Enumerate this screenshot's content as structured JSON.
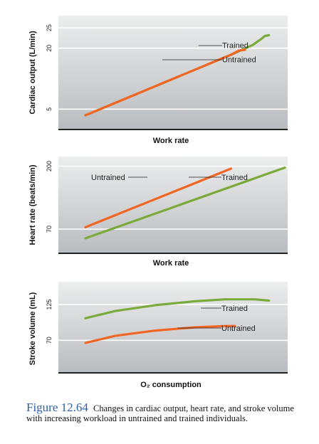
{
  "caption": {
    "label": "Figure 12.64",
    "text": "Changes in cardiac output, heart rate, and stroke volume with increasing workload in untrained and trained individuals."
  },
  "colors": {
    "trained": "#7aaa3a",
    "untrained": "#f26522"
  },
  "chart_data": [
    {
      "type": "line",
      "ylabel": "Cardiac output (L/min)",
      "xlabel": "Work rate",
      "yticks": [
        5,
        20,
        25
      ],
      "ylim": [
        0,
        28
      ],
      "xlim": [
        0,
        100
      ],
      "grid": true,
      "series": [
        {
          "name": "Trained",
          "x": [
            0,
            25,
            50,
            75,
            84,
            88,
            90,
            92
          ],
          "y": [
            3.5,
            8.6,
            13.7,
            18.8,
            20.8,
            22.2,
            23.0,
            23.2
          ]
        },
        {
          "name": "Untrained",
          "x": [
            0,
            25,
            50,
            73,
            77,
            80
          ],
          "y": [
            3.5,
            8.6,
            13.7,
            18.4,
            19.4,
            19.6
          ]
        }
      ]
    },
    {
      "type": "line",
      "ylabel": "Heart rate (beats/min)",
      "xlabel": "Work rate",
      "yticks": [
        70,
        200
      ],
      "ylim": [
        20,
        220
      ],
      "xlim": [
        0,
        100
      ],
      "grid": true,
      "series": [
        {
          "name": "Untrained",
          "x": [
            0,
            73
          ],
          "y": [
            74,
            195
          ]
        },
        {
          "name": "Trained",
          "x": [
            0,
            100
          ],
          "y": [
            51,
            197
          ]
        }
      ]
    },
    {
      "type": "line",
      "ylabel": "Stroke volume (mL)",
      "xlabel": "O₂ consumption",
      "yticks": [
        70,
        125
      ],
      "ylim": [
        20,
        160
      ],
      "xlim": [
        0,
        100
      ],
      "grid": true,
      "series": [
        {
          "name": "Trained",
          "x": [
            0,
            15,
            35,
            55,
            70,
            85,
            92
          ],
          "y": [
            104,
            115,
            124,
            130,
            133,
            133,
            131
          ]
        },
        {
          "name": "Untrained",
          "x": [
            0,
            15,
            35,
            55,
            70,
            75
          ],
          "y": [
            66,
            77,
            85,
            90,
            92,
            92
          ]
        }
      ]
    }
  ]
}
